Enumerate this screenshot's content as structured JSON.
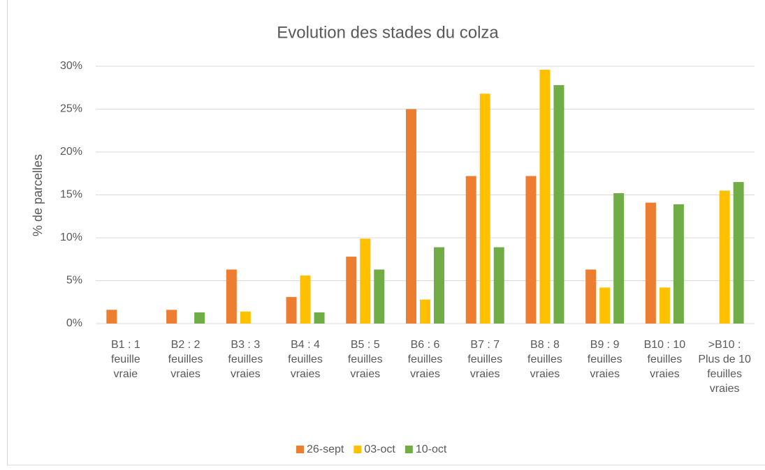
{
  "chart_data": {
    "type": "bar",
    "title": "Evolution des stades du colza",
    "y_label": "% de parcelles",
    "categories": [
      "B1 : 1 feuille vraie",
      "B2 : 2 feuilles vraies",
      "B3 : 3 feuilles vraies",
      "B4 : 4 feuilles vraies",
      "B5 : 5 feuilles vraies",
      "B6 : 6 feuilles vraies",
      "B7 : 7 feuilles vraies",
      "B8 : 8 feuilles vraies",
      "B9 : 9 feuilles vraies",
      "B10 : 10 feuilles vraies",
      ">B10 : Plus de 10 feuilles vraies"
    ],
    "series": [
      {
        "name": "26-sept",
        "color": "#ED7D31",
        "values": [
          1.6,
          1.6,
          6.3,
          3.1,
          7.8,
          25.0,
          17.2,
          17.2,
          6.3,
          14.1,
          0
        ]
      },
      {
        "name": "03-oct",
        "color": "#FFC000",
        "values": [
          0,
          0,
          1.4,
          5.6,
          9.9,
          2.8,
          26.8,
          29.6,
          4.2,
          4.2,
          15.5
        ]
      },
      {
        "name": "10-oct",
        "color": "#70AD47",
        "values": [
          0,
          1.3,
          0,
          1.3,
          6.3,
          8.9,
          8.9,
          27.8,
          15.2,
          13.9,
          16.5
        ]
      }
    ],
    "ylim": [
      0,
      30
    ],
    "yticks": [
      {
        "value": 0,
        "label": "0%"
      },
      {
        "value": 5,
        "label": "5%"
      },
      {
        "value": 10,
        "label": "10%"
      },
      {
        "value": 15,
        "label": "15%"
      },
      {
        "value": 20,
        "label": "20%"
      },
      {
        "value": 25,
        "label": "25%"
      },
      {
        "value": 30,
        "label": "30%"
      }
    ],
    "grid": true,
    "legend": "bottom"
  }
}
